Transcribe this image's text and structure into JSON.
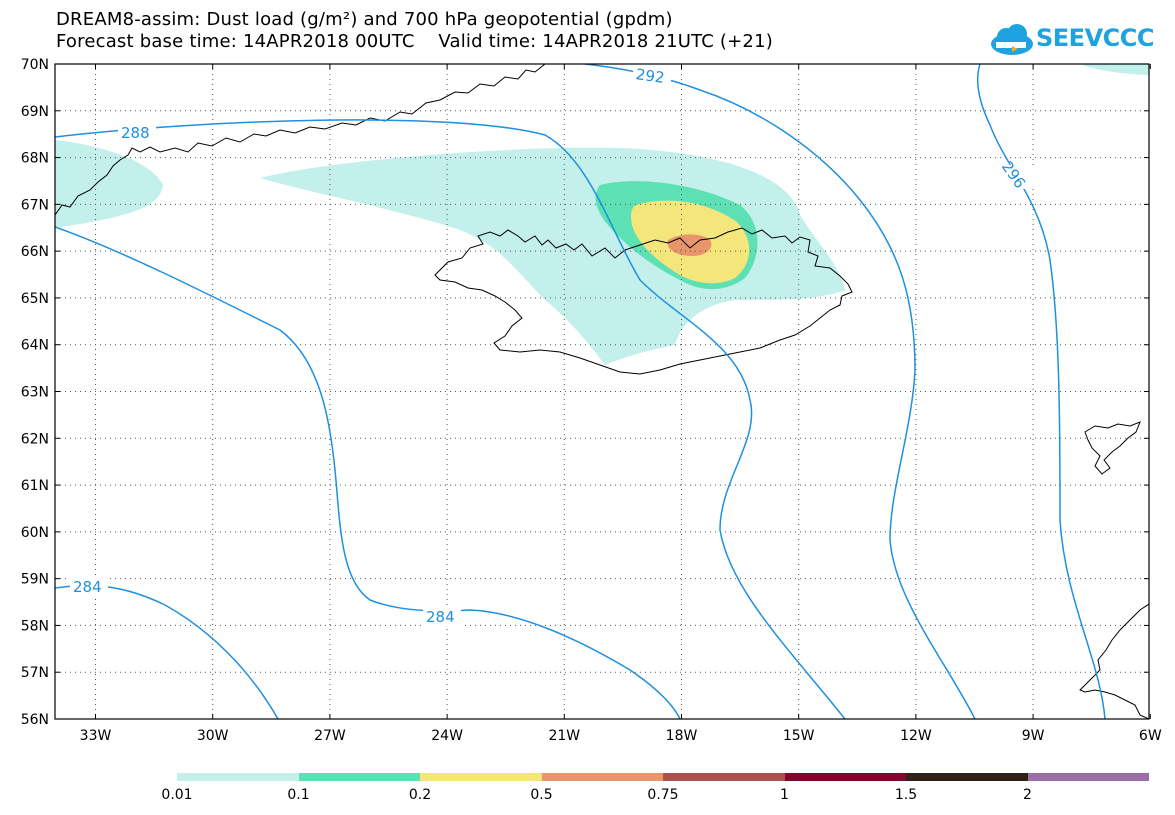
{
  "header": {
    "title_line1": "DREAM8-assim: Dust load (g/m²) and 700 hPa geopotential (gpdm)",
    "title_line2": "Forecast base time: 14APR2018 00UTC    Valid time: 14APR2018 21UTC (+21)"
  },
  "logo": {
    "text": "SEEVCCC",
    "icon": "cloud-icon",
    "color": "#1fa3e0"
  },
  "axes": {
    "lat_labels": [
      "70N",
      "69N",
      "68N",
      "67N",
      "66N",
      "65N",
      "64N",
      "63N",
      "62N",
      "61N",
      "60N",
      "59N",
      "58N",
      "57N",
      "56N"
    ],
    "lon_labels": [
      "33W",
      "30W",
      "27W",
      "24W",
      "21W",
      "18W",
      "15W",
      "12W",
      "9W",
      "6W"
    ]
  },
  "contours": {
    "color": "#1e90e0",
    "labels": [
      "292",
      "288",
      "296",
      "284",
      "284"
    ]
  },
  "colorbar": {
    "colors": [
      "#c3f0ea",
      "#5ce0b4",
      "#f5e67c",
      "#e9956a",
      "#a6514b",
      "#7d0a2e",
      "#2e2116",
      "#9a6fa8"
    ],
    "labels": [
      "0.01",
      "0.1",
      "0.2",
      "0.5",
      "0.75",
      "1",
      "1.5",
      "2"
    ]
  }
}
